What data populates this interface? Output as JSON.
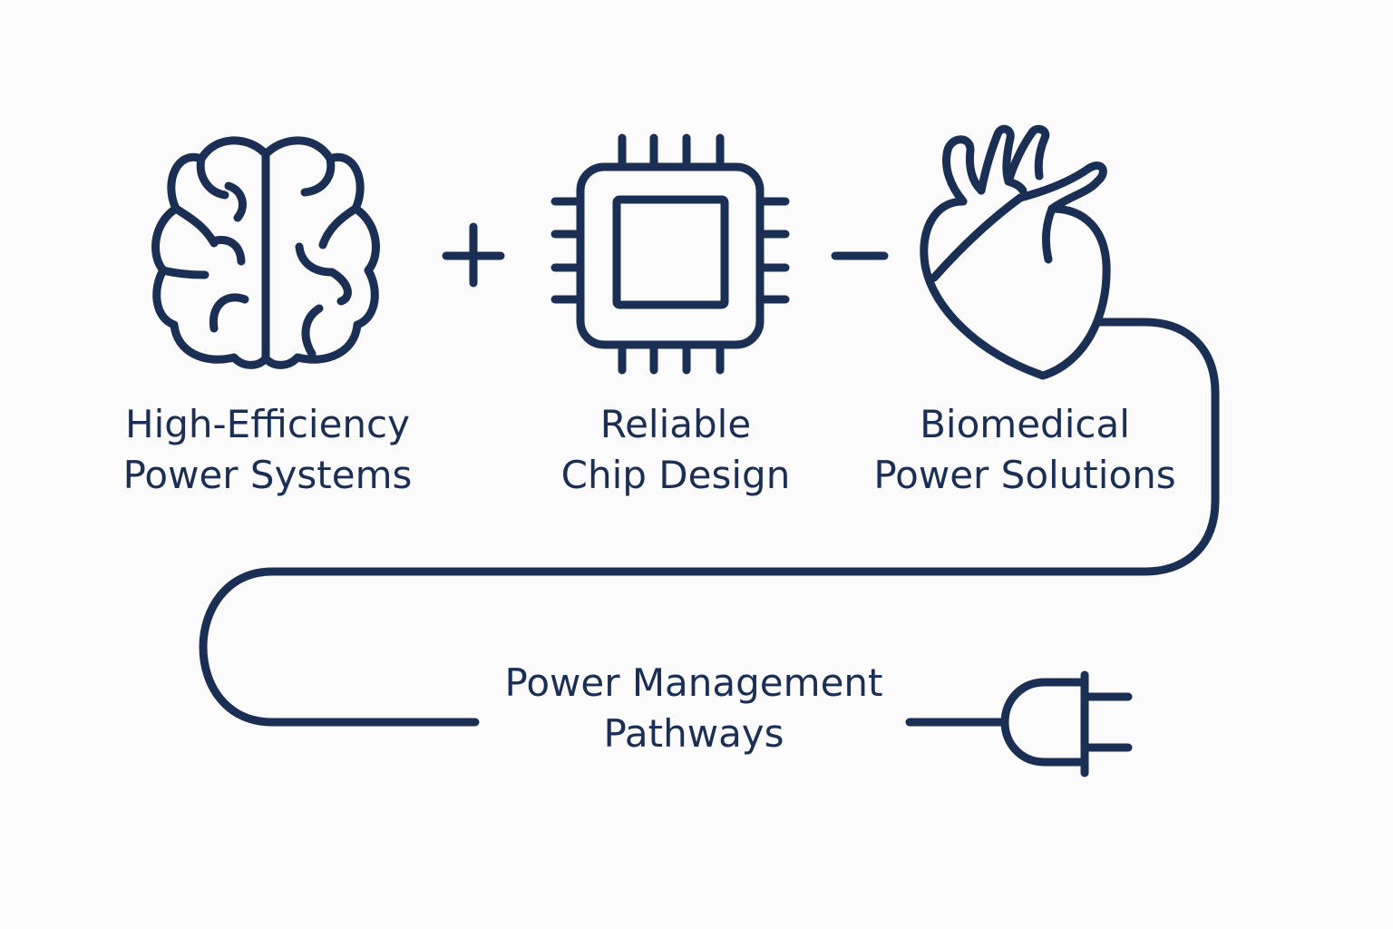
{
  "theme": {
    "background": "#fbfbfb",
    "stroke": "#1b2f55",
    "text": "#1b2f55"
  },
  "diagram": {
    "operators": [
      {
        "name": "plus-icon",
        "symbol": "+"
      },
      {
        "name": "minus-icon",
        "symbol": "−"
      }
    ],
    "nodes": [
      {
        "id": "brain",
        "icon": "brain-icon",
        "label_lines": [
          "High-Efficiency",
          "Power Systems"
        ]
      },
      {
        "id": "chip",
        "icon": "chip-icon",
        "label_lines": [
          "Reliable",
          "Chip Design"
        ]
      },
      {
        "id": "heart",
        "icon": "heart-icon",
        "label_lines": [
          "Biomedical",
          "Power Solutions"
        ]
      }
    ],
    "pathway": {
      "icon": "power-plug-icon",
      "label_lines": [
        "Power Management",
        "Pathways"
      ]
    }
  }
}
